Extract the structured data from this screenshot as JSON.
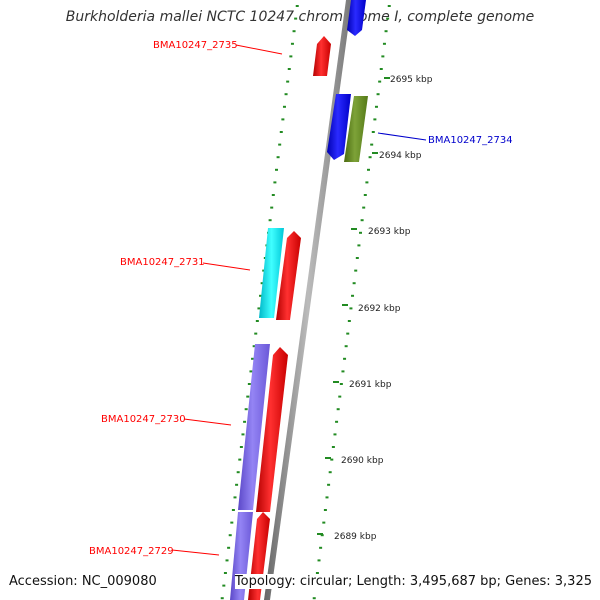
{
  "title": "Burkholderia mallei NCTC 10247 chromosome I, complete genome",
  "footer": {
    "accession": "Accession: NC_009080",
    "topology": "Topology: circular; Length: 3,495,687 bp; Genes: 3,325"
  },
  "colors": {
    "backbone": "#888888",
    "tick": "#228b22",
    "forward_gene": "#ff0000",
    "reverse_gene": "#0000ff",
    "rrna_gene": "#00e5ee",
    "other_gene": "#6b8e23",
    "purple_gene": "#7b68ee"
  },
  "ticks": [
    {
      "label": "2695 kbp",
      "kbp": 2695
    },
    {
      "label": "2694 kbp",
      "kbp": 2694
    },
    {
      "label": "2693 kbp",
      "kbp": 2693
    },
    {
      "label": "2692 kbp",
      "kbp": 2692
    },
    {
      "label": "2691 kbp",
      "kbp": 2691
    },
    {
      "label": "2690 kbp",
      "kbp": 2690
    },
    {
      "label": "2689 kbp",
      "kbp": 2689
    }
  ],
  "genes": [
    {
      "name": "BMA10247_2735",
      "color": "red",
      "labeled": true
    },
    {
      "name": "BMA10247_2734",
      "color": "blue",
      "labeled": true
    },
    {
      "name": "BMA10247_2731",
      "color": "red",
      "labeled": true
    },
    {
      "name": "BMA10247_2730",
      "color": "red",
      "labeled": true
    },
    {
      "name": "BMA10247_2729",
      "color": "red",
      "labeled": true
    }
  ]
}
